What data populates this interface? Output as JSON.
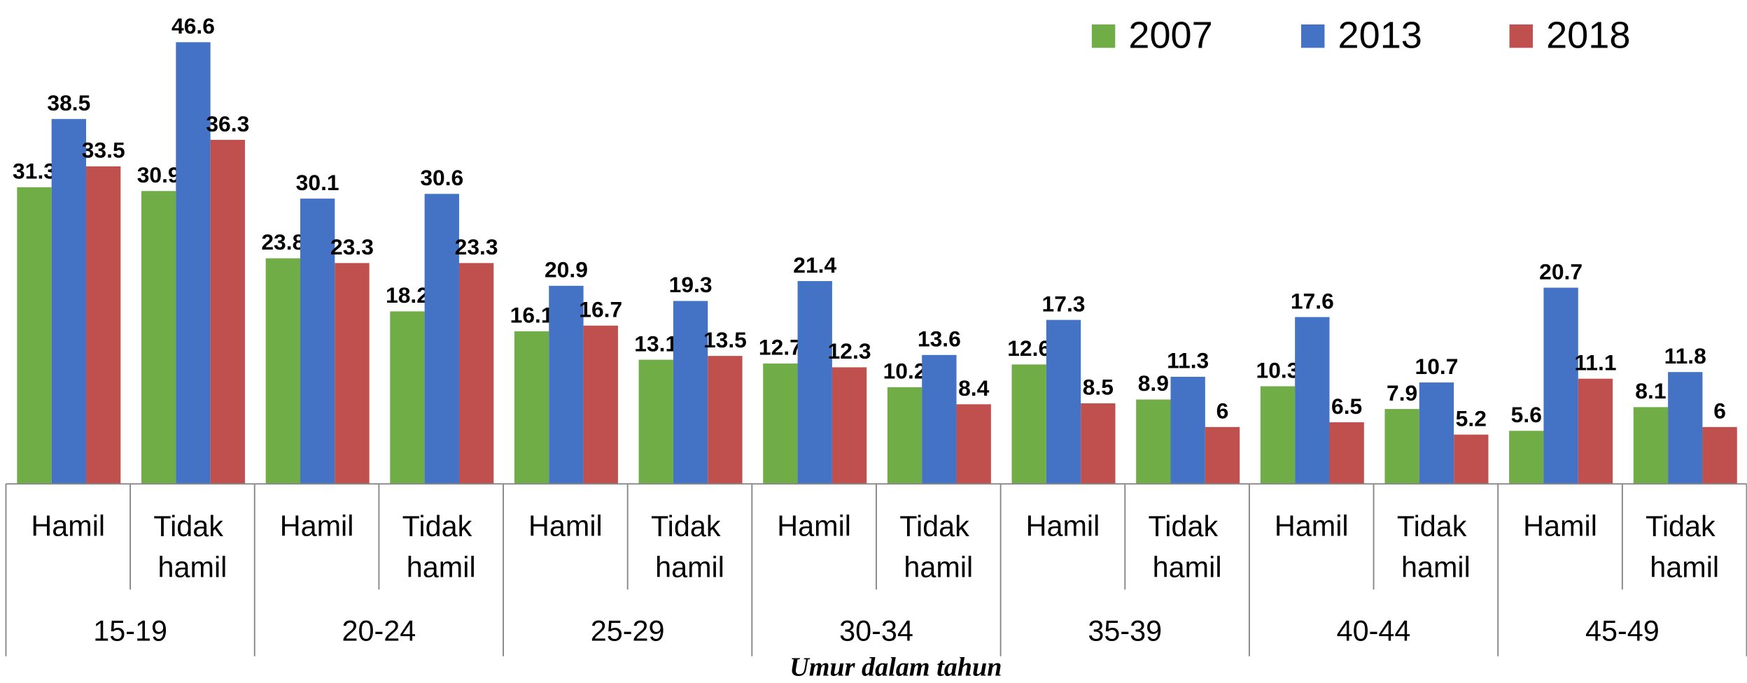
{
  "chart_data": {
    "type": "bar",
    "x_label": "Umur dalam tahun",
    "groups": [
      "15-19",
      "20-24",
      "25-29",
      "30-34",
      "35-39",
      "40-44",
      "45-49"
    ],
    "categories": [
      "Hamil",
      "Tidak hamil",
      "Hamil",
      "Tidak hamil",
      "Hamil",
      "Tidak hamil",
      "Hamil",
      "Tidak hamil",
      "Hamil",
      "Tidak hamil",
      "Hamil",
      "Tidak hamil",
      "Hamil",
      "Tidak hamil"
    ],
    "series": [
      {
        "name": "2007",
        "color": "#70ad47",
        "values": [
          31.3,
          30.9,
          23.8,
          18.2,
          16.1,
          13.1,
          12.7,
          10.2,
          12.6,
          8.9,
          10.3,
          7.9,
          5.6,
          8.1
        ]
      },
      {
        "name": "2013",
        "color": "#4472c4",
        "values": [
          38.5,
          46.6,
          30.1,
          30.6,
          20.9,
          19.3,
          21.4,
          13.6,
          17.3,
          11.3,
          17.6,
          10.7,
          20.7,
          11.8
        ]
      },
      {
        "name": "2018",
        "color": "#c0504d",
        "values": [
          33.5,
          36.3,
          23.3,
          23.3,
          16.7,
          13.5,
          12.3,
          8.4,
          8.5,
          6,
          6.5,
          5.2,
          11.1,
          6
        ]
      }
    ],
    "ylim": [
      0,
      50
    ],
    "legend": "top-right"
  }
}
